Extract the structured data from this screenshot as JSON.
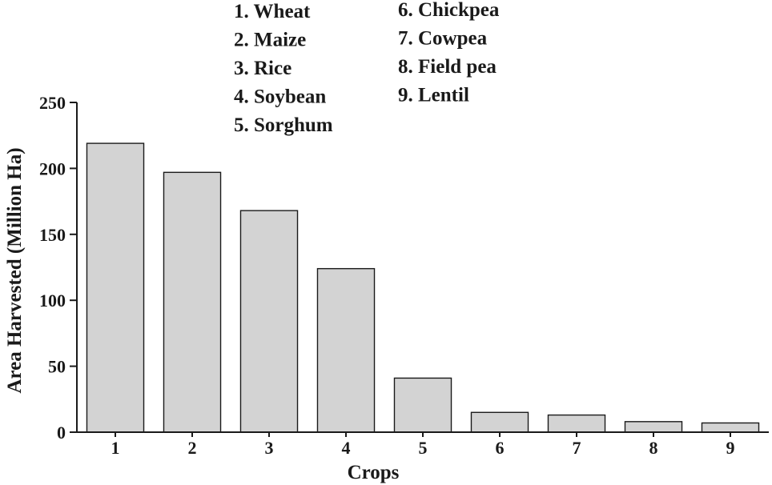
{
  "chart_data": {
    "type": "bar",
    "title": "",
    "xlabel": "Crops",
    "ylabel": "Area Harvested (Million Ha)",
    "ylim": [
      0,
      250
    ],
    "yticks": [
      0,
      50,
      100,
      150,
      200,
      250
    ],
    "categories": [
      "1",
      "2",
      "3",
      "4",
      "5",
      "6",
      "7",
      "8",
      "9"
    ],
    "values": [
      219,
      197,
      168,
      124,
      41,
      15,
      13,
      8,
      7
    ],
    "grid": false,
    "legend_position": "top",
    "legend_entries": [
      "1. Wheat",
      "2. Maize",
      "3. Rice",
      "4. Soybean",
      "5. Sorghum",
      "6. Chickpea",
      "7. Cowpea",
      "8. Field pea",
      "9. Lentil"
    ],
    "colors": {
      "bar_fill": "#d3d3d3",
      "bar_stroke": "#1a1a1a"
    }
  }
}
